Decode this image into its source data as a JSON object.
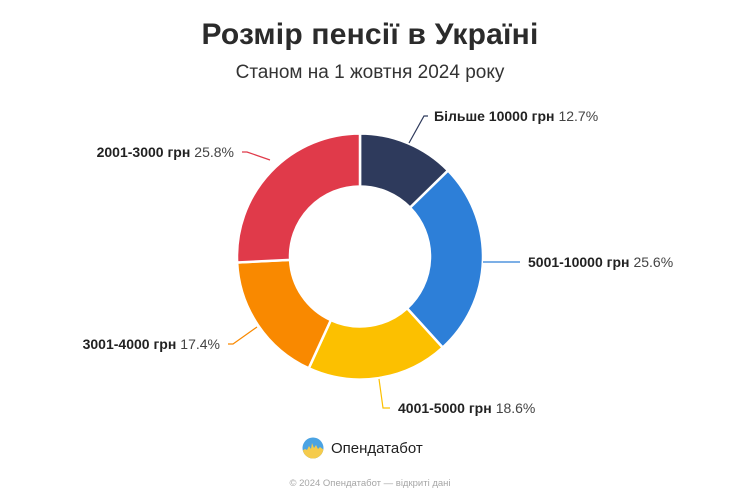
{
  "header": {
    "title": "Розмір пенсії в Україні",
    "subtitle": "Станом на 1 жовтня 2024 року"
  },
  "chart_data": {
    "type": "pie",
    "variant": "donut",
    "title": "Розмір пенсії в Україні",
    "subtitle": "Станом на 1 жовтня 2024 року",
    "start_angle_deg": 0,
    "direction": "clockwise",
    "categories": [
      "Більше 10000 грн",
      "5001-10000 грн",
      "4001-5000 грн",
      "3001-4000 грн",
      "2001-3000 грн"
    ],
    "values": [
      12.7,
      25.6,
      18.6,
      17.4,
      25.8
    ],
    "unit": "%",
    "colors": [
      "#2E3A5C",
      "#2D7FD8",
      "#FCC000",
      "#F98900",
      "#E03A4A"
    ],
    "labels": [
      {
        "category": "Більше 10000 грн",
        "value_text": "12.7%"
      },
      {
        "category": "5001-10000 грн",
        "value_text": "25.6%"
      },
      {
        "category": "4001-5000 грн",
        "value_text": "18.6%"
      },
      {
        "category": "3001-4000 грн",
        "value_text": "17.4%"
      },
      {
        "category": "2001-3000 грн",
        "value_text": "25.8%"
      }
    ],
    "legend": "none (data labels with leader lines)"
  },
  "brand": {
    "name": "Опендатабот",
    "logo_icon": "opendatabot-logo-icon"
  },
  "footer": {
    "text": "© 2024 Опендатабот — відкриті дані"
  }
}
